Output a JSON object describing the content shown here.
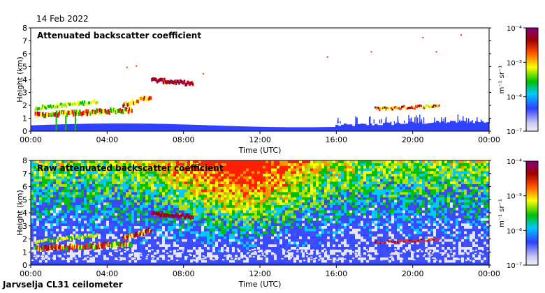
{
  "header": {
    "date": "14 Feb 2022"
  },
  "footer": {
    "instrument": "Jarvselja CL31 ceilometer"
  },
  "colors": {
    "scale": [
      "#e6e6f5",
      "#3040ff",
      "#00e0ff",
      "#00c000",
      "#ffff00",
      "#ff0000",
      "#800000",
      "#7a0074"
    ],
    "frame": "#000000"
  },
  "chart_data": [
    {
      "type": "heatmap",
      "title": "Attenuated backscatter coefficient",
      "xlabel": "Time (UTC)",
      "ylabel": "Height (km)",
      "x_ticks": [
        "00:00",
        "04:00",
        "08:00",
        "12:00",
        "16:00",
        "20:00",
        "00:00"
      ],
      "x_range_hours": [
        0,
        24
      ],
      "y_ticks": [
        "0",
        "1",
        "2",
        "3",
        "4",
        "5",
        "6",
        "7",
        "8"
      ],
      "ylim": [
        0,
        8
      ],
      "colorbar": {
        "label": "m⁻¹ sr⁻¹",
        "ticks": [
          "10⁻⁷",
          "10⁻⁶",
          "10⁻⁵",
          "10⁻⁴"
        ],
        "range_log10": [
          -7,
          -4
        ]
      },
      "features": [
        {
          "name": "boundary layer",
          "t_start": 0,
          "t_end": 24,
          "height_top_km": 0.6
        },
        {
          "name": "low cloud deck",
          "t_start": 0,
          "t_end": 5.5,
          "height_km": 1.6
        },
        {
          "name": "rising cloud",
          "t_start": 4.5,
          "t_end": 6.5,
          "height_km": 2.5
        },
        {
          "name": "elevated layer",
          "t_start": 6.2,
          "t_end": 8.5,
          "height_km": 4.0
        },
        {
          "name": "evening layer",
          "t_start": 18,
          "t_end": 21.5,
          "height_km": 1.9
        }
      ]
    },
    {
      "type": "heatmap",
      "title": "Raw attenuated backscatter coefficient",
      "xlabel": "Time (UTC)",
      "ylabel": "Height (km)",
      "x_ticks": [
        "00:00",
        "04:00",
        "08:00",
        "12:00",
        "16:00",
        "20:00",
        "00:00"
      ],
      "x_range_hours": [
        0,
        24
      ],
      "y_ticks": [
        "0",
        "1",
        "2",
        "3",
        "4",
        "5",
        "6",
        "7",
        "8"
      ],
      "ylim": [
        0,
        8
      ],
      "colorbar": {
        "label": "m⁻¹ sr⁻¹",
        "ticks": [
          "10⁻⁷",
          "10⁻⁶",
          "10⁻⁵",
          "10⁻⁴"
        ],
        "range_log10": [
          -7,
          -4
        ]
      },
      "features": [
        {
          "name": "noise background",
          "t_start": 0,
          "t_end": 24,
          "height_km": 8
        },
        {
          "name": "low cloud deck",
          "t_start": 0,
          "t_end": 5.5,
          "height_km": 1.6
        },
        {
          "name": "elevated layer",
          "t_start": 6.2,
          "t_end": 8.5,
          "height_km": 4.0
        }
      ]
    }
  ]
}
